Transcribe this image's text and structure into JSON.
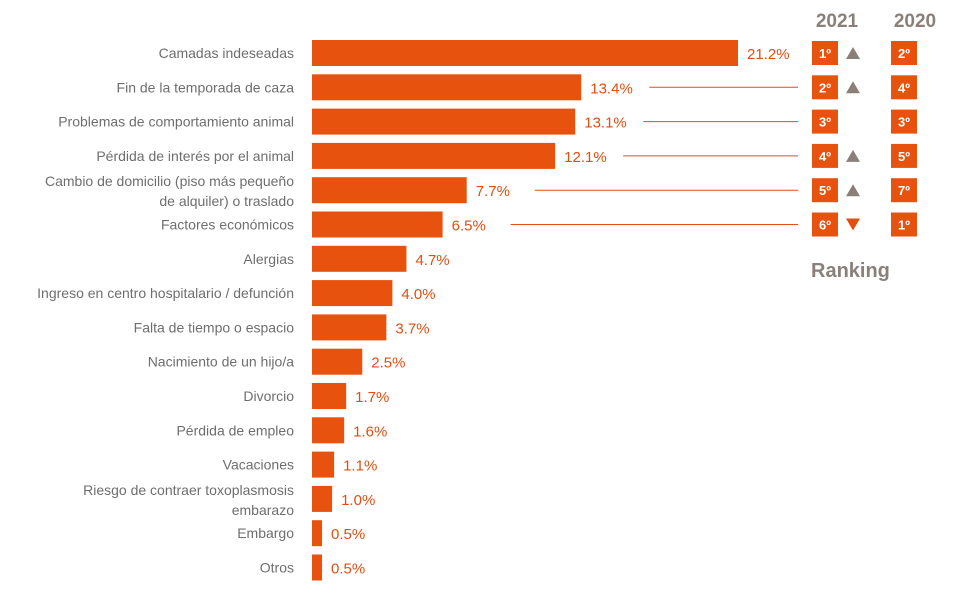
{
  "chart_data": {
    "type": "bar",
    "orientation": "horizontal",
    "categories": [
      "Camadas indeseadas",
      "Fin de la temporada de caza",
      "Problemas de comportamiento animal",
      "Pérdida de interés por el animal",
      "Cambio de domicilio (piso más pequeño de alquiler) o traslado",
      "Factores económicos",
      "Alergias",
      "Ingreso en centro hospitalario / defunción",
      "Falta de tiempo o espacio",
      "Nacimiento de un hijo/a",
      "Divorcio",
      "Pérdida de empleo",
      "Vacaciones",
      "Riesgo de contraer toxoplasmosis embarazo",
      "Embargo",
      "Otros"
    ],
    "category_lines": [
      [
        "Camadas indeseadas"
      ],
      [
        "Fin de la temporada de caza"
      ],
      [
        "Problemas de comportamiento animal"
      ],
      [
        "Pérdida de interés por el animal"
      ],
      [
        "Cambio de domicilio (piso más pequeño",
        "de alquiler) o traslado"
      ],
      [
        "Factores económicos"
      ],
      [
        "Alergias"
      ],
      [
        "Ingreso en centro hospitalario / defunción"
      ],
      [
        "Falta de tiempo o espacio"
      ],
      [
        "Nacimiento de un hijo/a"
      ],
      [
        "Divorcio"
      ],
      [
        "Pérdida de empleo"
      ],
      [
        "Vacaciones"
      ],
      [
        "Riesgo de contraer toxoplasmosis",
        "embarazo"
      ],
      [
        "Embargo"
      ],
      [
        "Otros"
      ]
    ],
    "values": [
      21.2,
      13.4,
      13.1,
      12.1,
      7.7,
      6.5,
      4.7,
      4.0,
      3.7,
      2.5,
      1.7,
      1.6,
      1.1,
      1.0,
      0.5,
      0.5
    ],
    "value_labels": [
      "21.2%",
      "13.4%",
      "13.1%",
      "12.1%",
      "7.7%",
      "6.5%",
      "4.7%",
      "4.0%",
      "3.7%",
      "2.5%",
      "1.7%",
      "1.6%",
      "1.1%",
      "1.0%",
      "0.5%",
      "0.5%"
    ],
    "xlim": [
      0,
      21.2
    ],
    "grid": false,
    "legend": "none",
    "bar_color": "#e8520f",
    "ranking": {
      "title": "Ranking",
      "year_2021_label": "2021",
      "year_2020_label": "2020",
      "rows": [
        {
          "rank_2021": "1º",
          "trend": "up",
          "rank_2020": "2º"
        },
        {
          "rank_2021": "2º",
          "trend": "up",
          "rank_2020": "4º"
        },
        {
          "rank_2021": "3º",
          "trend": "none",
          "rank_2020": "3º"
        },
        {
          "rank_2021": "4º",
          "trend": "up",
          "rank_2020": "5º"
        },
        {
          "rank_2021": "5º",
          "trend": "up",
          "rank_2020": "7º"
        },
        {
          "rank_2021": "6º",
          "trend": "down",
          "rank_2020": "1º"
        }
      ],
      "up_color": "#8a8079",
      "down_color": "#e24e12",
      "badge_color": "#e8520f"
    }
  }
}
